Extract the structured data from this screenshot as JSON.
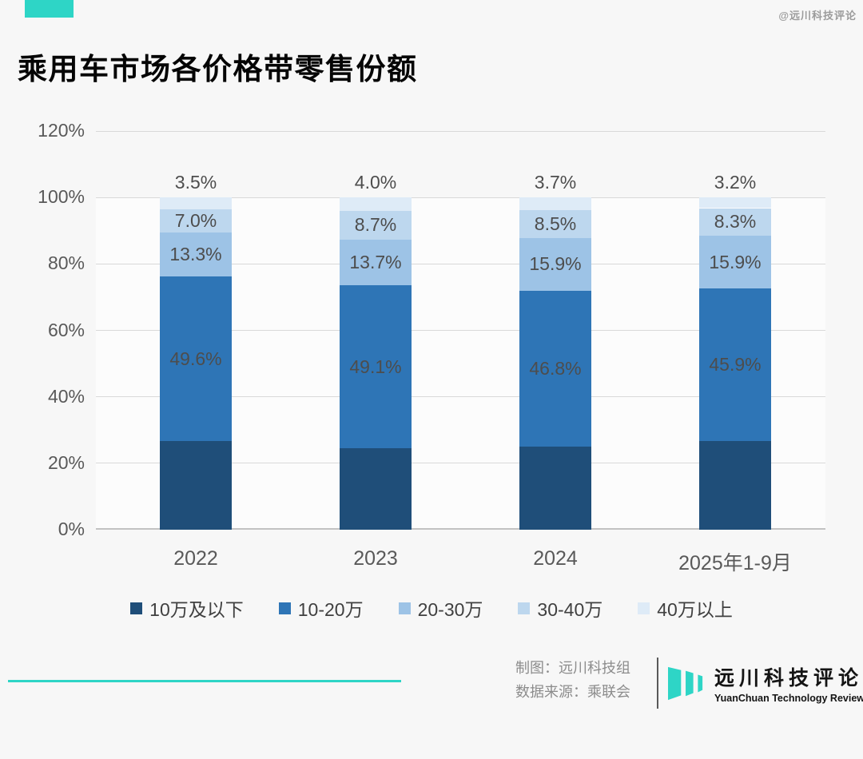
{
  "title": "乘用车市场各价格带零售份额",
  "watermark": "@远川科技评论",
  "chart_data": {
    "type": "bar",
    "stacked": true,
    "title": "乘用车市场各价格带零售份额",
    "categories": [
      "2022",
      "2023",
      "2024",
      "2025年1-9月"
    ],
    "series": [
      {
        "name": "10万及以下",
        "color": "#1f4e79",
        "values": [
          26.6,
          24.5,
          25.1,
          26.7
        ],
        "data_labels_shown": false
      },
      {
        "name": "10-20万",
        "color": "#2e75b6",
        "values": [
          49.6,
          49.1,
          46.8,
          45.9
        ],
        "data_labels_shown": true
      },
      {
        "name": "20-30万",
        "color": "#9dc3e6",
        "values": [
          13.3,
          13.7,
          15.9,
          15.9
        ],
        "data_labels_shown": true
      },
      {
        "name": "30-40万",
        "color": "#bdd7ee",
        "values": [
          7.0,
          8.7,
          8.5,
          8.3
        ],
        "data_labels_shown": true
      },
      {
        "name": "40万以上",
        "color": "#deebf7",
        "values": [
          3.5,
          4.0,
          3.7,
          3.2
        ],
        "data_labels_shown": true,
        "label_position": "above"
      }
    ],
    "y_ticks": [
      0,
      20,
      40,
      60,
      80,
      100,
      120
    ],
    "ylim": [
      0,
      120
    ],
    "y_tick_suffix": "%",
    "data_label_suffix": "%",
    "grid": true,
    "legend_position": "bottom"
  },
  "footer": {
    "credit_maker": "制图：远川科技组",
    "credit_source": "数据来源：乘联会",
    "logo_cn": "远川科技评论",
    "logo_en": "YuanChuan Technology Review"
  },
  "colors": {
    "accent_teal": "#2ed5c6",
    "background": "#f7f7f7"
  }
}
